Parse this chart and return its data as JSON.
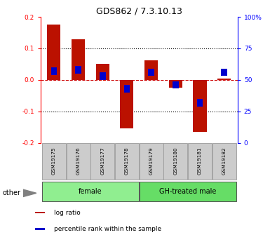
{
  "title": "GDS862 / 7.3.10.13",
  "samples": [
    "GSM19175",
    "GSM19176",
    "GSM19177",
    "GSM19178",
    "GSM19179",
    "GSM19180",
    "GSM19181",
    "GSM19182"
  ],
  "log_ratio": [
    0.175,
    0.13,
    0.05,
    -0.155,
    0.062,
    -0.025,
    -0.165,
    0.005
  ],
  "percentile": [
    57,
    58,
    53,
    43,
    56,
    46,
    32,
    56
  ],
  "groups": [
    {
      "label": "female",
      "indices": [
        0,
        1,
        2,
        3
      ],
      "color": "#90EE90"
    },
    {
      "label": "GH-treated male",
      "indices": [
        4,
        5,
        6,
        7
      ],
      "color": "#66DD66"
    }
  ],
  "ylim": [
    -0.2,
    0.2
  ],
  "yticks_left": [
    -0.2,
    -0.1,
    0.0,
    0.1,
    0.2
  ],
  "yticks_right_labels": [
    "0",
    "25",
    "50",
    "75",
    "100%"
  ],
  "yticks_right_pct": [
    0,
    25,
    50,
    75,
    100
  ],
  "bar_color": "#BB1100",
  "percentile_color": "#0000CC",
  "zero_line_color": "#CC0000",
  "other_label": "other",
  "legend_items": [
    {
      "color": "#BB1100",
      "label": "log ratio"
    },
    {
      "color": "#0000CC",
      "label": "percentile rank within the sample"
    }
  ]
}
